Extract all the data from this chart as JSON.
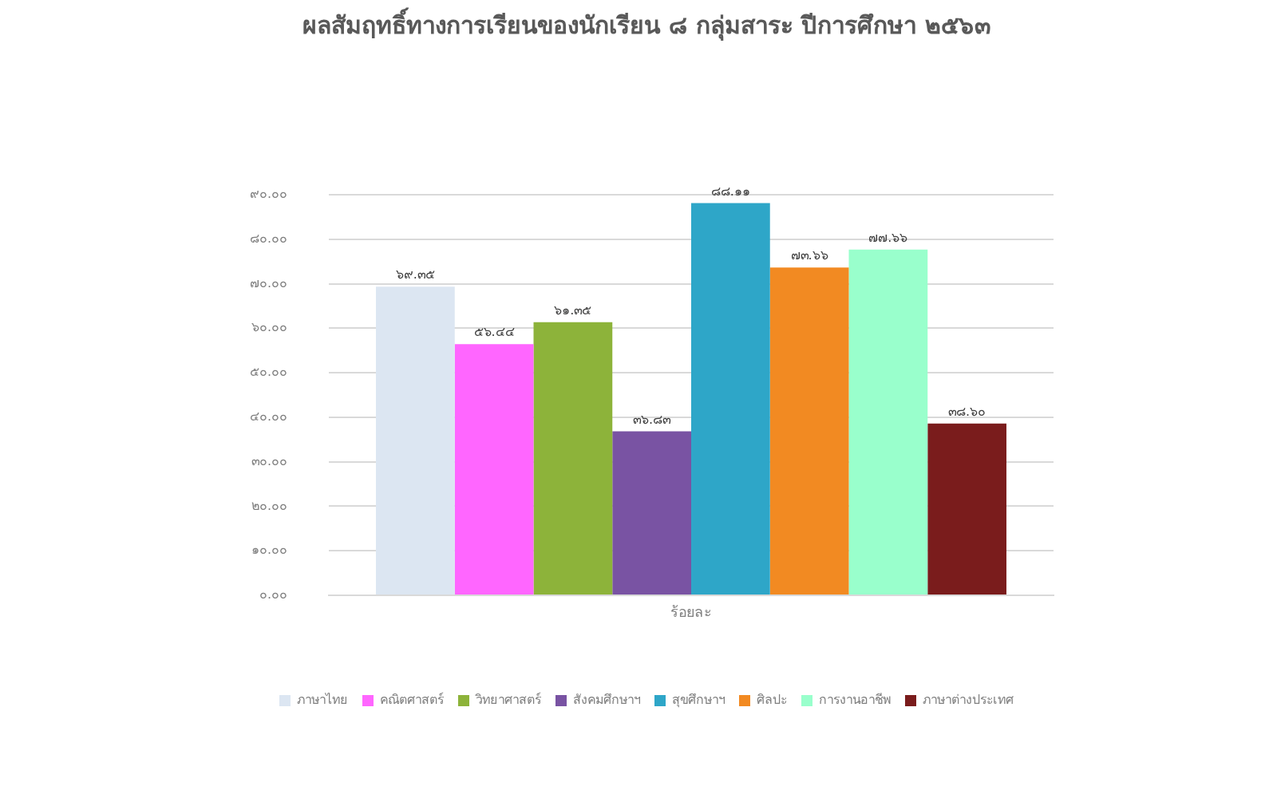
{
  "chart_data": {
    "type": "bar",
    "title": "ผลสัมฤทธิ์ทางการเรียนของนักเรียน ๘ กลุ่มสาระ ปีการศึกษา ๒๕๖๓",
    "categories": [
      "ร้อยละ"
    ],
    "series": [
      {
        "name": "ภาษาไทย",
        "color": "#dce6f2",
        "values": [
          69.35
        ],
        "value_labels": [
          "๖๙.๓๕"
        ]
      },
      {
        "name": "คณิตศาสตร์",
        "color": "#ff66ff",
        "values": [
          56.44
        ],
        "value_labels": [
          "๕๖.๔๔"
        ]
      },
      {
        "name": "วิทยาศาสตร์",
        "color": "#8db33a",
        "values": [
          61.35
        ],
        "value_labels": [
          "๖๑.๓๕"
        ]
      },
      {
        "name": "สังคมศึกษาฯ",
        "color": "#7953a3",
        "values": [
          36.83
        ],
        "value_labels": [
          "๓๖.๘๓"
        ]
      },
      {
        "name": "สุขศึกษาฯ",
        "color": "#2ea6c8",
        "values": [
          88.11
        ],
        "value_labels": [
          "๘๘.๑๑"
        ]
      },
      {
        "name": "ศิลปะ",
        "color": "#f28a22",
        "values": [
          73.66
        ],
        "value_labels": [
          "๗๓.๖๖"
        ]
      },
      {
        "name": "การงานอาชีพ",
        "color": "#99ffcc",
        "values": [
          77.66
        ],
        "value_labels": [
          "๗๗.๖๖"
        ]
      },
      {
        "name": "ภาษาต่างประเทศ",
        "color": "#7a1c1c",
        "values": [
          38.6
        ],
        "value_labels": [
          "๓๘.๖๐"
        ]
      }
    ],
    "ylim": [
      0,
      90
    ],
    "yticks": [
      {
        "value": 0,
        "label": "๐.๐๐"
      },
      {
        "value": 10,
        "label": "๑๐.๐๐"
      },
      {
        "value": 20,
        "label": "๒๐.๐๐"
      },
      {
        "value": 30,
        "label": "๓๐.๐๐"
      },
      {
        "value": 40,
        "label": "๔๐.๐๐"
      },
      {
        "value": 50,
        "label": "๕๐.๐๐"
      },
      {
        "value": 60,
        "label": "๖๐.๐๐"
      },
      {
        "value": 70,
        "label": "๗๐.๐๐"
      },
      {
        "value": 80,
        "label": "๘๐.๐๐"
      },
      {
        "value": 90,
        "label": "๙๐.๐๐"
      }
    ],
    "grid": "y",
    "legend": "bottom"
  }
}
